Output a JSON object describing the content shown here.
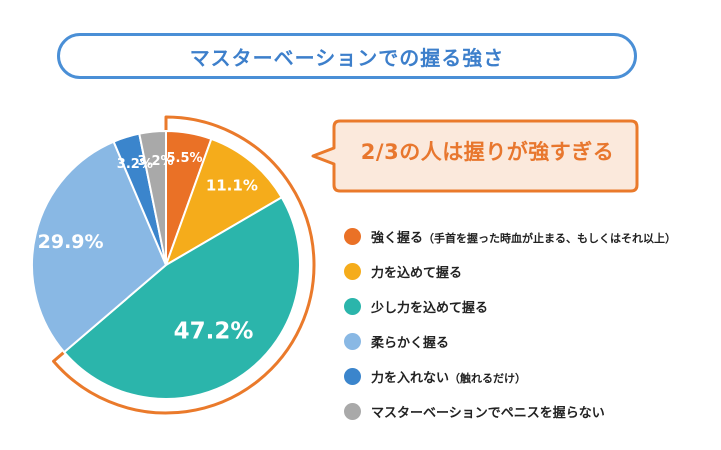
{
  "title": "マスターベーションでの握る強さ",
  "callout": "2/3の人は握りが強すぎる",
  "colors": {
    "title_border": "#4a8fd6",
    "callout_orange": "#ea7a2b",
    "callout_fill": "#fbe9dc"
  },
  "chart_data": {
    "type": "pie",
    "slices": [
      {
        "label": "強く握る",
        "note": "（手首を握った時血が止まる、もしくはそれ以上）",
        "value": 5.5,
        "value_label": "5.5%",
        "color": "#ea7126"
      },
      {
        "label": "力を込めて握る",
        "value": 11.1,
        "value_label": "11.1%",
        "color": "#f5ac1b"
      },
      {
        "label": "少し力を込めて握る",
        "value": 47.2,
        "value_label": "47.2%",
        "color": "#2bb5ab"
      },
      {
        "label": "柔らかく握る",
        "value": 29.9,
        "value_label": "29.9%",
        "color": "#89b8e4"
      },
      {
        "label": "力を入れない",
        "note": "（触れるだけ）",
        "value": 3.2,
        "value_label": "3.2%",
        "color": "#3b85cc"
      },
      {
        "label": "マスターベーションでペニスを握らない",
        "value": 3.2,
        "value_label": "3.2%",
        "color": "#a9a9a9"
      }
    ],
    "start_angle": "12 o'clock",
    "direction": "clockwise",
    "highlight_arc": "slices 1-3"
  }
}
